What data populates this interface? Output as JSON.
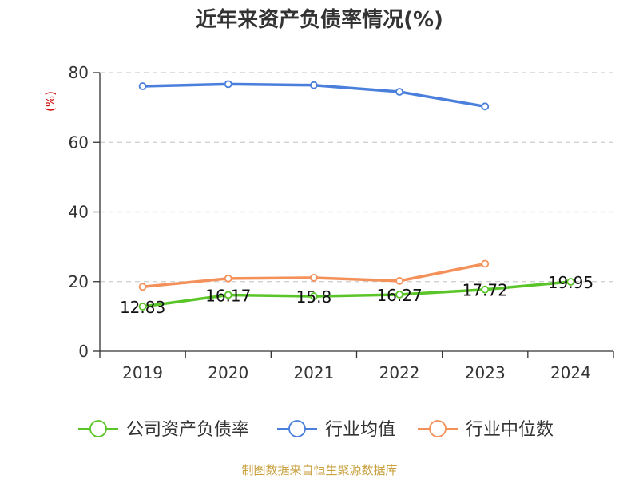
{
  "chart_data": {
    "type": "line",
    "title": "近年来资产负债率情况(%)",
    "ylabel": "(%)",
    "xlabel": "",
    "categories": [
      "2019",
      "2020",
      "2021",
      "2022",
      "2023",
      "2024"
    ],
    "ylim": [
      0,
      80
    ],
    "yticks": [
      0,
      20,
      40,
      60,
      80
    ],
    "grid": true,
    "legend_position": "bottom",
    "series": [
      {
        "name": "公司资产负债率",
        "color": "#5ac528",
        "values": [
          12.83,
          16.17,
          15.8,
          16.27,
          17.72,
          19.95
        ],
        "labels": [
          "12.83",
          "16.17",
          "15.8",
          "16.27",
          "17.72",
          "19.95"
        ]
      },
      {
        "name": "行业均值",
        "color": "#4a7fdc",
        "values": [
          76.1,
          76.7,
          76.4,
          74.5,
          70.3,
          null
        ]
      },
      {
        "name": "行业中位数",
        "color": "#f4915a",
        "values": [
          18.5,
          20.9,
          21.1,
          20.2,
          25.1,
          null
        ]
      }
    ],
    "source": "制图数据来自恒生聚源数据库"
  }
}
